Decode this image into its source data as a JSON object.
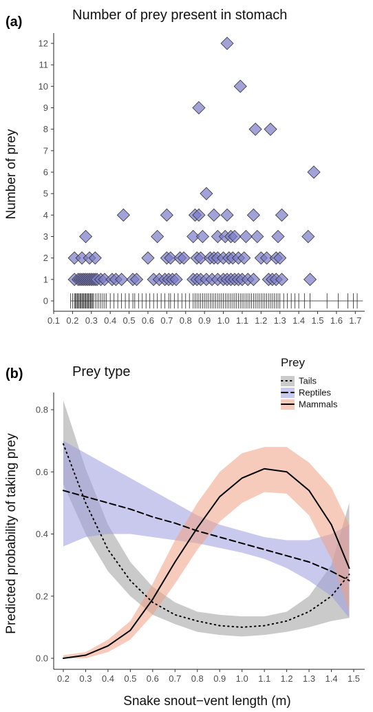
{
  "chart_data": [
    {
      "type": "scatter",
      "panel_label": "(a)",
      "title": "Number of prey present in stomach",
      "ylabel": "Number of prey",
      "xlabel": "",
      "xlim": [
        0.1,
        1.75
      ],
      "ylim": [
        0,
        12
      ],
      "x_ticks": [
        "0.1",
        "0.2",
        "0.3",
        "0.4",
        "0.5",
        "0.6",
        "0.7",
        "0.8",
        "0.9",
        "1.0",
        "1.1",
        "1.2",
        "1.3",
        "1.4",
        "1.5",
        "1.6",
        "1.7"
      ],
      "y_ticks": [
        "0",
        "1",
        "2",
        "3",
        "4",
        "5",
        "6",
        "7",
        "8",
        "9",
        "10",
        "11",
        "12"
      ],
      "grid": false,
      "marker": "diamond",
      "marker_color": "#7b7bc8",
      "points": [
        {
          "x": 0.21,
          "y": 1
        },
        {
          "x": 0.23,
          "y": 1
        },
        {
          "x": 0.24,
          "y": 1
        },
        {
          "x": 0.25,
          "y": 1
        },
        {
          "x": 0.26,
          "y": 1
        },
        {
          "x": 0.27,
          "y": 1
        },
        {
          "x": 0.28,
          "y": 1
        },
        {
          "x": 0.29,
          "y": 1
        },
        {
          "x": 0.3,
          "y": 1
        },
        {
          "x": 0.31,
          "y": 1
        },
        {
          "x": 0.32,
          "y": 1
        },
        {
          "x": 0.33,
          "y": 1
        },
        {
          "x": 0.35,
          "y": 1
        },
        {
          "x": 0.37,
          "y": 1
        },
        {
          "x": 0.41,
          "y": 1
        },
        {
          "x": 0.43,
          "y": 1
        },
        {
          "x": 0.46,
          "y": 1
        },
        {
          "x": 0.52,
          "y": 1
        },
        {
          "x": 0.54,
          "y": 1
        },
        {
          "x": 0.63,
          "y": 1
        },
        {
          "x": 0.66,
          "y": 1
        },
        {
          "x": 0.69,
          "y": 1
        },
        {
          "x": 0.71,
          "y": 1
        },
        {
          "x": 0.73,
          "y": 1
        },
        {
          "x": 0.75,
          "y": 1
        },
        {
          "x": 0.84,
          "y": 1
        },
        {
          "x": 0.86,
          "y": 1
        },
        {
          "x": 0.88,
          "y": 1
        },
        {
          "x": 0.91,
          "y": 1
        },
        {
          "x": 0.94,
          "y": 1
        },
        {
          "x": 0.97,
          "y": 1
        },
        {
          "x": 1.0,
          "y": 1
        },
        {
          "x": 1.02,
          "y": 1
        },
        {
          "x": 1.04,
          "y": 1
        },
        {
          "x": 1.06,
          "y": 1
        },
        {
          "x": 1.08,
          "y": 1
        },
        {
          "x": 1.1,
          "y": 1
        },
        {
          "x": 1.13,
          "y": 1
        },
        {
          "x": 1.16,
          "y": 1
        },
        {
          "x": 1.24,
          "y": 1
        },
        {
          "x": 1.26,
          "y": 1
        },
        {
          "x": 1.28,
          "y": 1
        },
        {
          "x": 1.31,
          "y": 1
        },
        {
          "x": 1.46,
          "y": 1
        },
        {
          "x": 0.21,
          "y": 2
        },
        {
          "x": 0.25,
          "y": 2
        },
        {
          "x": 0.29,
          "y": 2
        },
        {
          "x": 0.32,
          "y": 2
        },
        {
          "x": 0.6,
          "y": 2
        },
        {
          "x": 0.7,
          "y": 2
        },
        {
          "x": 0.72,
          "y": 2
        },
        {
          "x": 0.77,
          "y": 2
        },
        {
          "x": 0.79,
          "y": 2
        },
        {
          "x": 0.86,
          "y": 2
        },
        {
          "x": 0.88,
          "y": 2
        },
        {
          "x": 0.93,
          "y": 2
        },
        {
          "x": 0.95,
          "y": 2
        },
        {
          "x": 0.97,
          "y": 2
        },
        {
          "x": 1.0,
          "y": 2
        },
        {
          "x": 1.03,
          "y": 2
        },
        {
          "x": 1.05,
          "y": 2
        },
        {
          "x": 1.08,
          "y": 2
        },
        {
          "x": 1.11,
          "y": 2
        },
        {
          "x": 1.2,
          "y": 2
        },
        {
          "x": 1.23,
          "y": 2
        },
        {
          "x": 1.28,
          "y": 2
        },
        {
          "x": 1.3,
          "y": 2
        },
        {
          "x": 0.27,
          "y": 3
        },
        {
          "x": 0.65,
          "y": 3
        },
        {
          "x": 0.84,
          "y": 3
        },
        {
          "x": 0.89,
          "y": 3
        },
        {
          "x": 0.97,
          "y": 3
        },
        {
          "x": 1.01,
          "y": 3
        },
        {
          "x": 1.04,
          "y": 3
        },
        {
          "x": 1.06,
          "y": 3
        },
        {
          "x": 1.12,
          "y": 3
        },
        {
          "x": 1.18,
          "y": 3
        },
        {
          "x": 1.29,
          "y": 3
        },
        {
          "x": 1.45,
          "y": 3
        },
        {
          "x": 0.47,
          "y": 4
        },
        {
          "x": 0.7,
          "y": 4
        },
        {
          "x": 0.85,
          "y": 4
        },
        {
          "x": 0.87,
          "y": 4
        },
        {
          "x": 0.95,
          "y": 4
        },
        {
          "x": 1.02,
          "y": 4
        },
        {
          "x": 1.16,
          "y": 4
        },
        {
          "x": 1.31,
          "y": 4
        },
        {
          "x": 0.91,
          "y": 5
        },
        {
          "x": 1.48,
          "y": 6
        },
        {
          "x": 1.17,
          "y": 8
        },
        {
          "x": 1.25,
          "y": 8
        },
        {
          "x": 0.87,
          "y": 9
        },
        {
          "x": 1.09,
          "y": 10
        },
        {
          "x": 1.02,
          "y": 12
        }
      ],
      "rug_y": 0,
      "rug_x": [
        0.19,
        0.2,
        0.21,
        0.215,
        0.22,
        0.225,
        0.23,
        0.235,
        0.24,
        0.245,
        0.25,
        0.255,
        0.26,
        0.265,
        0.27,
        0.275,
        0.28,
        0.285,
        0.29,
        0.295,
        0.3,
        0.305,
        0.31,
        0.32,
        0.33,
        0.34,
        0.35,
        0.36,
        0.37,
        0.38,
        0.4,
        0.42,
        0.44,
        0.46,
        0.48,
        0.5,
        0.52,
        0.53,
        0.55,
        0.57,
        0.59,
        0.61,
        0.63,
        0.65,
        0.67,
        0.69,
        0.71,
        0.72,
        0.74,
        0.76,
        0.78,
        0.8,
        0.82,
        0.84,
        0.85,
        0.86,
        0.87,
        0.88,
        0.89,
        0.9,
        0.91,
        0.92,
        0.93,
        0.94,
        0.95,
        0.96,
        0.97,
        0.98,
        0.99,
        1.0,
        1.01,
        1.02,
        1.03,
        1.04,
        1.05,
        1.06,
        1.07,
        1.08,
        1.09,
        1.1,
        1.11,
        1.12,
        1.13,
        1.14,
        1.15,
        1.16,
        1.17,
        1.18,
        1.19,
        1.2,
        1.21,
        1.22,
        1.23,
        1.24,
        1.25,
        1.26,
        1.27,
        1.28,
        1.29,
        1.3,
        1.32,
        1.34,
        1.36,
        1.38,
        1.4,
        1.43,
        1.46,
        1.55,
        1.61,
        1.66,
        1.69,
        1.71
      ]
    },
    {
      "type": "line",
      "panel_label": "(b)",
      "title": "Prey type",
      "xlabel": "Snake snout−vent length (m)",
      "ylabel": "Predicted probability of taking prey",
      "xlim": [
        0.15,
        1.52
      ],
      "ylim": [
        -0.02,
        0.85
      ],
      "x_ticks": [
        "0.2",
        "0.3",
        "0.4",
        "0.5",
        "0.6",
        "0.7",
        "0.8",
        "0.9",
        "1.0",
        "1.1",
        "1.2",
        "1.3",
        "1.4",
        "1.5"
      ],
      "y_ticks": [
        "0.0",
        "0.2",
        "0.4",
        "0.6",
        "0.8"
      ],
      "grid": false,
      "legend": {
        "title": "Prey",
        "position": "top-right"
      },
      "x": [
        0.2,
        0.3,
        0.4,
        0.5,
        0.6,
        0.7,
        0.8,
        0.9,
        1.0,
        1.1,
        1.2,
        1.3,
        1.4,
        1.48
      ],
      "series": [
        {
          "name": "Tails",
          "line_style": "dotted",
          "ribbon_color": "#9e9e9e",
          "values": [
            0.69,
            0.5,
            0.35,
            0.25,
            0.18,
            0.14,
            0.12,
            0.105,
            0.1,
            0.105,
            0.12,
            0.15,
            0.2,
            0.27
          ],
          "lower": [
            0.56,
            0.4,
            0.28,
            0.2,
            0.14,
            0.11,
            0.085,
            0.075,
            0.07,
            0.075,
            0.085,
            0.1,
            0.12,
            0.13
          ],
          "upper": [
            0.83,
            0.61,
            0.43,
            0.31,
            0.23,
            0.18,
            0.15,
            0.14,
            0.135,
            0.135,
            0.15,
            0.2,
            0.3,
            0.5
          ]
        },
        {
          "name": "Reptiles",
          "line_style": "dashed",
          "ribbon_color": "#9c9ce0",
          "values": [
            0.54,
            0.52,
            0.5,
            0.48,
            0.455,
            0.435,
            0.41,
            0.39,
            0.37,
            0.35,
            0.33,
            0.31,
            0.28,
            0.25
          ],
          "lower": [
            0.36,
            0.39,
            0.4,
            0.4,
            0.39,
            0.38,
            0.37,
            0.355,
            0.34,
            0.32,
            0.29,
            0.25,
            0.2,
            0.13
          ],
          "upper": [
            0.7,
            0.66,
            0.62,
            0.58,
            0.54,
            0.5,
            0.46,
            0.43,
            0.41,
            0.39,
            0.38,
            0.38,
            0.4,
            0.43
          ]
        },
        {
          "name": "Mammals",
          "line_style": "solid",
          "ribbon_color": "#f1a183",
          "values": [
            0.0,
            0.01,
            0.04,
            0.09,
            0.19,
            0.31,
            0.42,
            0.52,
            0.58,
            0.61,
            0.6,
            0.54,
            0.43,
            0.29
          ],
          "lower": [
            0.0,
            0.0,
            0.02,
            0.06,
            0.14,
            0.24,
            0.35,
            0.44,
            0.5,
            0.535,
            0.53,
            0.46,
            0.32,
            0.15
          ],
          "upper": [
            0.01,
            0.02,
            0.06,
            0.12,
            0.24,
            0.38,
            0.5,
            0.6,
            0.66,
            0.68,
            0.68,
            0.63,
            0.55,
            0.43
          ]
        }
      ]
    }
  ]
}
